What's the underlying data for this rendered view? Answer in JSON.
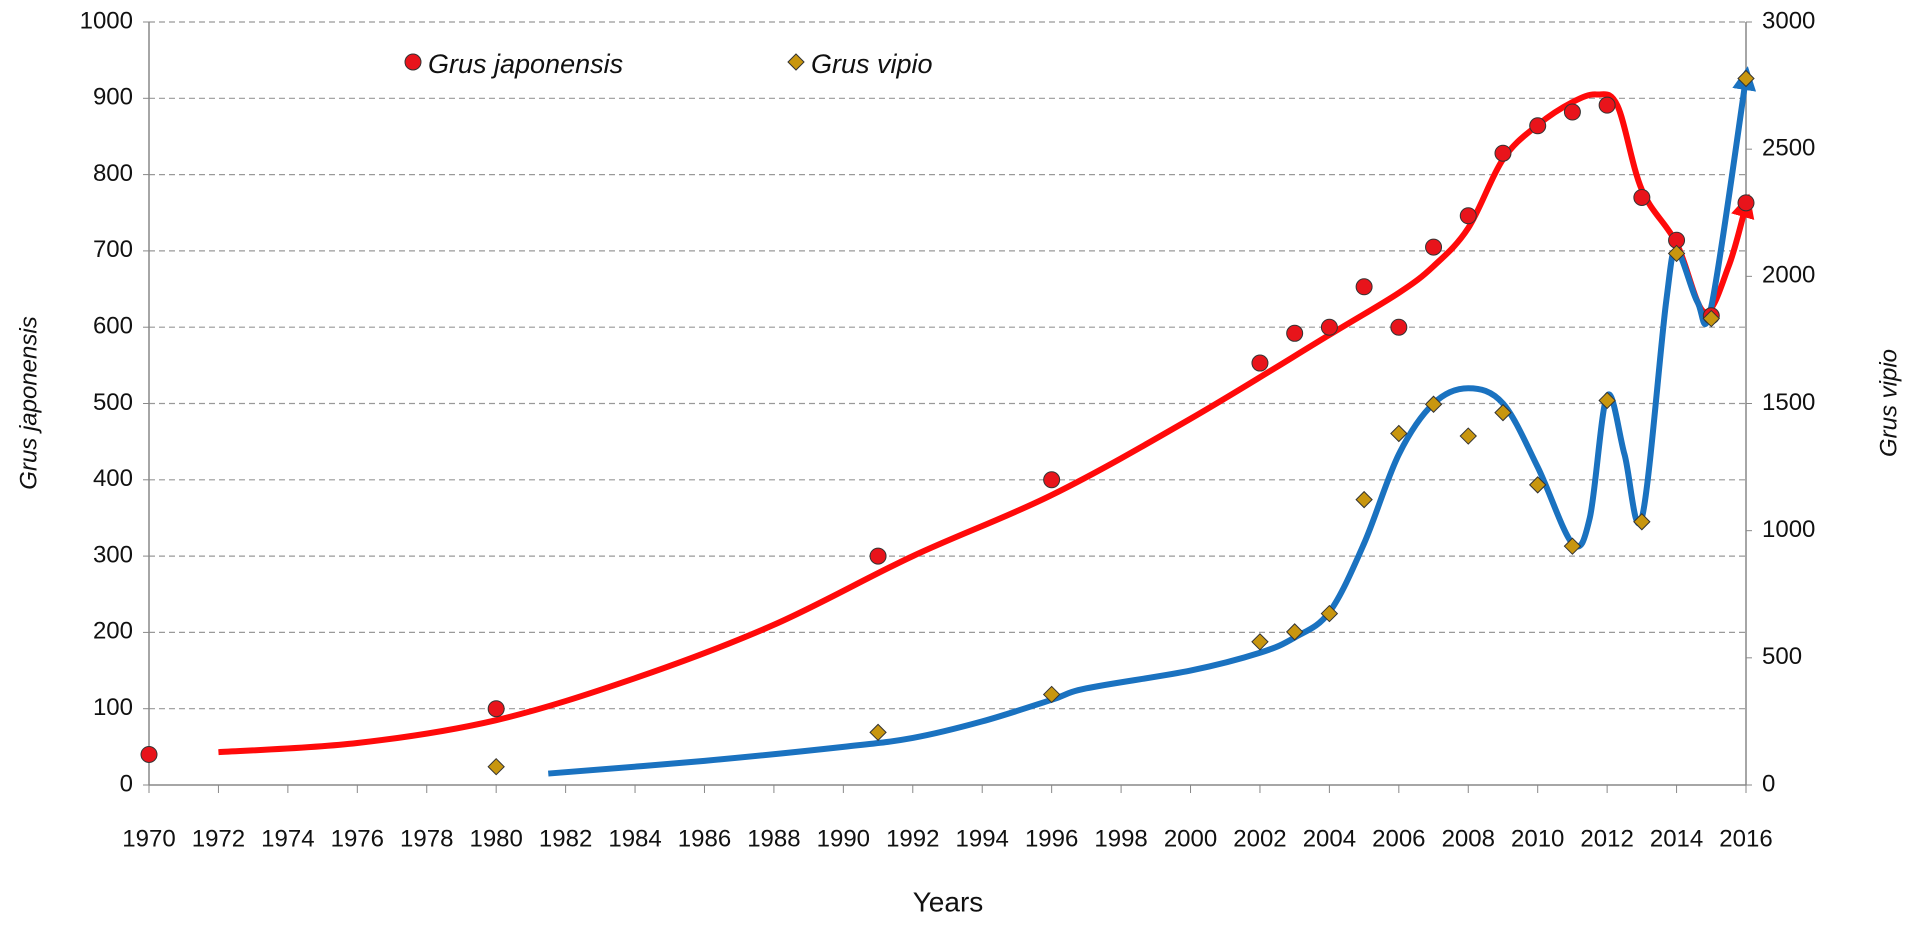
{
  "chart_data": {
    "type": "scatter",
    "xlabel": "Years",
    "ylabel": "Grus japonensis",
    "y2label": "Grus vipio",
    "xlim": [
      1970,
      2016
    ],
    "xticks": [
      1970,
      1972,
      1974,
      1976,
      1978,
      1980,
      1982,
      1984,
      1986,
      1988,
      1990,
      1992,
      1994,
      1996,
      1998,
      2000,
      2002,
      2004,
      2006,
      2008,
      2010,
      2012,
      2014,
      2016
    ],
    "ylim": [
      0,
      1000
    ],
    "yticks": [
      0,
      100,
      200,
      300,
      400,
      500,
      600,
      700,
      800,
      900,
      1000
    ],
    "y2lim": [
      0,
      3000
    ],
    "y2ticks": [
      0,
      500,
      1000,
      1500,
      2000,
      2500,
      3000
    ],
    "grid": true,
    "series": [
      {
        "name": "Grus japonensis",
        "color": "#e8141b",
        "marker": "circle",
        "x": [
          1970,
          1980,
          1991,
          1996,
          2002,
          2003,
          2004,
          2005,
          2006,
          2007,
          2008,
          2009,
          2010,
          2011,
          2012,
          2013,
          2014,
          2015,
          2016
        ],
        "values": [
          40,
          100,
          300,
          400,
          553,
          592,
          600,
          653,
          600,
          705,
          746,
          828,
          864,
          882,
          891,
          770,
          714,
          615,
          763
        ]
      },
      {
        "name": "Grus vipio",
        "color": "#c8960f",
        "marker": "diamond",
        "axis": "y2",
        "x": [
          1980,
          1991,
          1996,
          2002,
          2003,
          2004,
          2005,
          2006,
          2007,
          2008,
          2009,
          2010,
          2011,
          2012,
          2013,
          2014,
          2015,
          2016
        ],
        "values": [
          72,
          207,
          356,
          563,
          602,
          674,
          1122,
          1382,
          1497,
          1372,
          1464,
          1180,
          939,
          1512,
          1035,
          2090,
          1834,
          2778
        ]
      }
    ],
    "curves": [
      {
        "color": "#ff0a0a",
        "x": [
          1972,
          1976,
          1980,
          1984,
          1988,
          1992,
          1996,
          2000,
          2004,
          2006,
          2007,
          2008,
          2009,
          2010,
          2011,
          2011.7,
          2012.3,
          2013,
          2014,
          2014.8,
          2015.5,
          2016
        ],
        "values": [
          43,
          55,
          85,
          140,
          210,
          300,
          380,
          480,
          590,
          645,
          680,
          730,
          820,
          865,
          895,
          905,
          890,
          780,
          710,
          620,
          680,
          760
        ]
      },
      {
        "color": "#1a72c0",
        "axis": "y2",
        "x": [
          1981.5,
          1986,
          1990,
          1992,
          1994,
          1996,
          1997,
          2000,
          2002,
          2003,
          2004,
          2005,
          2006,
          2007,
          2008,
          2009,
          2010,
          2011,
          2011.5,
          2012,
          2012.5,
          2013,
          2013.7,
          2014,
          2014.6,
          2015,
          2016
        ],
        "values": [
          45,
          95,
          150,
          185,
          250,
          335,
          380,
          450,
          520,
          580,
          680,
          950,
          1300,
          1500,
          1560,
          1500,
          1250,
          950,
          1050,
          1530,
          1300,
          1050,
          1900,
          2100,
          1900,
          1880,
          2780
        ]
      }
    ]
  }
}
